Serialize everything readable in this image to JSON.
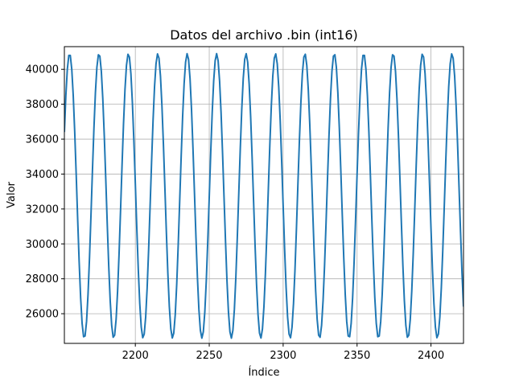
{
  "chart_data": {
    "type": "line",
    "title": "Datos del archivo .bin (int16)",
    "xlabel": "Índice",
    "ylabel": "Valor",
    "xlim": [
      2152,
      2422
    ],
    "ylim": [
      24300,
      41300
    ],
    "xticks": [
      2200,
      2250,
      2300,
      2350,
      2400
    ],
    "yticks": [
      26000,
      28000,
      30000,
      32000,
      34000,
      36000,
      38000,
      40000
    ],
    "grid": true,
    "series": [
      {
        "color": "#1f77b4",
        "signal": {
          "mean": 32750,
          "amplitude": 8150,
          "period": 19.9,
          "first_peak_x": 2155.5,
          "x_start": 2152,
          "x_end": 2422
        }
      }
    ]
  }
}
